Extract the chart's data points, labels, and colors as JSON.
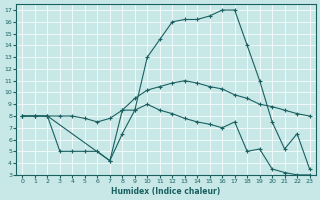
{
  "title": "",
  "xlabel": "Humidex (Indice chaleur)",
  "ylabel": "",
  "bg_color": "#c8e8e8",
  "line_color": "#1a6060",
  "grid_color": "#ffffff",
  "xlim": [
    -0.5,
    23.5
  ],
  "ylim": [
    3,
    17.5
  ],
  "yticks": [
    3,
    4,
    5,
    6,
    7,
    8,
    9,
    10,
    11,
    12,
    13,
    14,
    15,
    16,
    17
  ],
  "xticks": [
    0,
    1,
    2,
    3,
    4,
    5,
    6,
    7,
    8,
    9,
    10,
    11,
    12,
    13,
    14,
    15,
    16,
    17,
    18,
    19,
    20,
    21,
    22,
    23
  ],
  "line1_x": [
    0,
    1,
    2,
    3,
    4,
    5,
    6,
    7,
    8,
    9,
    10,
    11,
    12,
    13,
    14,
    15,
    16,
    17,
    18,
    19,
    20,
    21,
    22,
    23
  ],
  "line1_y": [
    8.0,
    8.0,
    8.0,
    5.0,
    5.0,
    5.0,
    5.0,
    4.2,
    6.5,
    8.5,
    9.0,
    8.5,
    8.2,
    7.8,
    7.5,
    7.3,
    7.0,
    7.5,
    5.0,
    5.2,
    3.5,
    3.2,
    3.0,
    3.0
  ],
  "line2_x": [
    0,
    1,
    2,
    3,
    4,
    5,
    6,
    7,
    8,
    9,
    10,
    11,
    12,
    13,
    14,
    15,
    16,
    17,
    18,
    19,
    20,
    21,
    22,
    23
  ],
  "line2_y": [
    8.0,
    8.0,
    8.0,
    8.0,
    8.0,
    7.8,
    7.5,
    7.8,
    8.5,
    9.5,
    10.2,
    10.5,
    10.8,
    11.0,
    10.8,
    10.5,
    10.3,
    9.8,
    9.5,
    9.0,
    8.8,
    8.5,
    8.2,
    8.0
  ],
  "line3_x": [
    0,
    1,
    2,
    7,
    8,
    9,
    10,
    11,
    12,
    13,
    14,
    15,
    16,
    17,
    18,
    19,
    20,
    21,
    22,
    23
  ],
  "line3_y": [
    8.0,
    8.0,
    8.0,
    4.2,
    8.5,
    8.5,
    13.0,
    14.5,
    16.0,
    16.2,
    16.2,
    16.5,
    17.0,
    17.0,
    14.0,
    11.0,
    7.5,
    5.2,
    6.5,
    3.5
  ]
}
